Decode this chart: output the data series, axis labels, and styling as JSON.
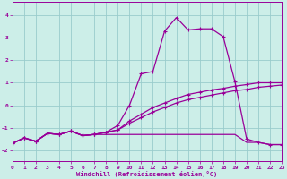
{
  "xlabel": "Windchill (Refroidissement éolien,°C)",
  "bg_color": "#cceee8",
  "grid_color": "#99cccc",
  "line_color": "#990099",
  "xlim": [
    0,
    23
  ],
  "ylim": [
    -2.5,
    4.6
  ],
  "xticks": [
    0,
    1,
    2,
    3,
    4,
    5,
    6,
    7,
    8,
    9,
    10,
    11,
    12,
    13,
    14,
    15,
    16,
    17,
    18,
    19,
    20,
    21,
    22,
    23
  ],
  "yticks": [
    -2,
    -1,
    0,
    1,
    2,
    3,
    4
  ],
  "line1_x": [
    0,
    1,
    2,
    3,
    4,
    5,
    6,
    7,
    8,
    9,
    10,
    11,
    12,
    13,
    14,
    15,
    16,
    17,
    18,
    19,
    20,
    21,
    22,
    23
  ],
  "line1_y": [
    -1.7,
    -1.45,
    -1.6,
    -1.25,
    -1.3,
    -1.15,
    -1.35,
    -1.3,
    -1.3,
    -1.3,
    -1.3,
    -1.3,
    -1.3,
    -1.3,
    -1.3,
    -1.3,
    -1.3,
    -1.3,
    -1.3,
    -1.3,
    -1.65,
    -1.65,
    -1.75,
    -1.75
  ],
  "line2_x": [
    0,
    1,
    2,
    3,
    4,
    5,
    6,
    7,
    8,
    9,
    10,
    11,
    12,
    13,
    14,
    15,
    16,
    17,
    18,
    19,
    20,
    21,
    22,
    23
  ],
  "line2_y": [
    -1.7,
    -1.45,
    -1.6,
    -1.25,
    -1.3,
    -1.15,
    -1.35,
    -1.3,
    -1.2,
    -1.1,
    -0.8,
    -0.55,
    -0.3,
    -0.1,
    0.1,
    0.25,
    0.35,
    0.45,
    0.55,
    0.65,
    0.7,
    0.8,
    0.85,
    0.9
  ],
  "line3_x": [
    0,
    1,
    2,
    3,
    4,
    5,
    6,
    7,
    8,
    9,
    10,
    11,
    12,
    13,
    14,
    15,
    16,
    17,
    18,
    19,
    20,
    21,
    22,
    23
  ],
  "line3_y": [
    -1.7,
    -1.45,
    -1.6,
    -1.25,
    -1.3,
    -1.15,
    -1.35,
    -1.3,
    -1.2,
    -1.1,
    -0.7,
    -0.4,
    -0.1,
    0.1,
    0.3,
    0.48,
    0.58,
    0.68,
    0.75,
    0.85,
    0.92,
    1.0,
    1.0,
    1.0
  ],
  "line4_x": [
    0,
    1,
    2,
    3,
    4,
    5,
    6,
    7,
    8,
    9,
    10,
    11,
    12,
    13,
    14,
    15,
    16,
    17,
    18,
    19,
    20,
    21,
    22,
    23
  ],
  "line4_y": [
    -1.7,
    -1.45,
    -1.6,
    -1.25,
    -1.3,
    -1.15,
    -1.35,
    -1.3,
    -1.2,
    -0.9,
    0.0,
    1.4,
    1.5,
    3.3,
    3.9,
    3.35,
    3.4,
    3.4,
    3.05,
    1.05,
    -1.5,
    -1.65,
    -1.75,
    -1.75
  ],
  "line2_markers": [
    9,
    10,
    11,
    12,
    13,
    14,
    15,
    16,
    17,
    18,
    19,
    20
  ],
  "line3_markers": [
    9,
    10,
    11,
    12,
    13,
    14,
    15,
    16,
    17,
    18,
    19,
    20,
    21,
    22,
    23
  ],
  "line4_markers": [
    9,
    10,
    11,
    12,
    13,
    14,
    15,
    16,
    17,
    18,
    19,
    20
  ]
}
